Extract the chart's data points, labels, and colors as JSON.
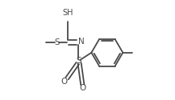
{
  "bg_color": "#ffffff",
  "line_color": "#4a4a4a",
  "line_width": 1.3,
  "font_size": 7.0,
  "text_color": "#4a4a4a",
  "xlim": [
    -0.05,
    1.05
  ],
  "ylim": [
    0.05,
    1.0
  ]
}
